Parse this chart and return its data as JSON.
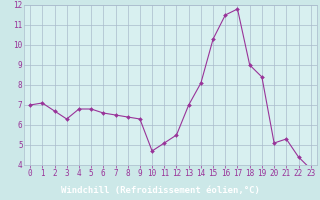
{
  "x": [
    0,
    1,
    2,
    3,
    4,
    5,
    6,
    7,
    8,
    9,
    10,
    11,
    12,
    13,
    14,
    15,
    16,
    17,
    18,
    19,
    20,
    21,
    22,
    23
  ],
  "y": [
    7.0,
    7.1,
    6.7,
    6.3,
    6.8,
    6.8,
    6.6,
    6.5,
    6.4,
    6.3,
    4.7,
    5.1,
    5.5,
    7.0,
    8.1,
    10.3,
    11.5,
    11.8,
    9.0,
    8.4,
    5.1,
    5.3,
    4.4,
    3.8
  ],
  "line_color": "#993399",
  "marker_color": "#993399",
  "bg_color": "#cce8e8",
  "plot_bg_color": "#d8f0f0",
  "grid_color": "#aabbcc",
  "label_bar_color": "#9933aa",
  "xlabel": "Windchill (Refroidissement éolien,°C)",
  "xlim": [
    -0.5,
    23.5
  ],
  "ylim": [
    4,
    12
  ],
  "yticks": [
    4,
    5,
    6,
    7,
    8,
    9,
    10,
    11,
    12
  ],
  "xticks": [
    0,
    1,
    2,
    3,
    4,
    5,
    6,
    7,
    8,
    9,
    10,
    11,
    12,
    13,
    14,
    15,
    16,
    17,
    18,
    19,
    20,
    21,
    22,
    23
  ],
  "tick_color": "#993399",
  "tick_fontsize": 5.5,
  "xlabel_fontsize": 6.5,
  "xlabel_color": "#ffffff"
}
